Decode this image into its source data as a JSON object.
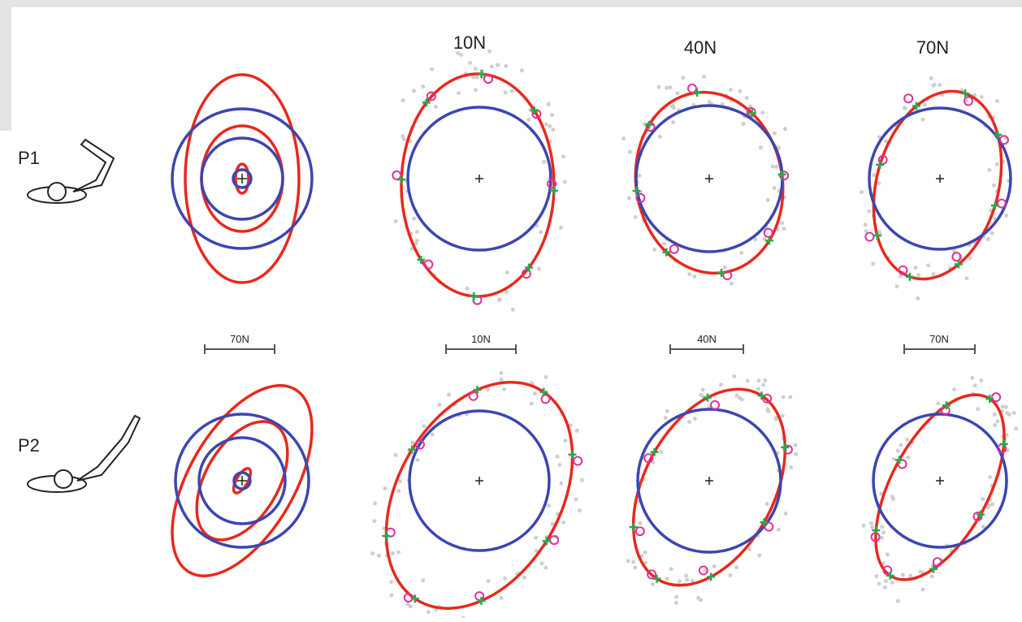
{
  "columns": {
    "0": "10N",
    "1": "40N",
    "2": "70N"
  },
  "rows": [
    {
      "label": "P1"
    },
    {
      "label": "P2"
    }
  ],
  "scale_bars": [
    "70N",
    "10N",
    "40N",
    "70N"
  ]
}
